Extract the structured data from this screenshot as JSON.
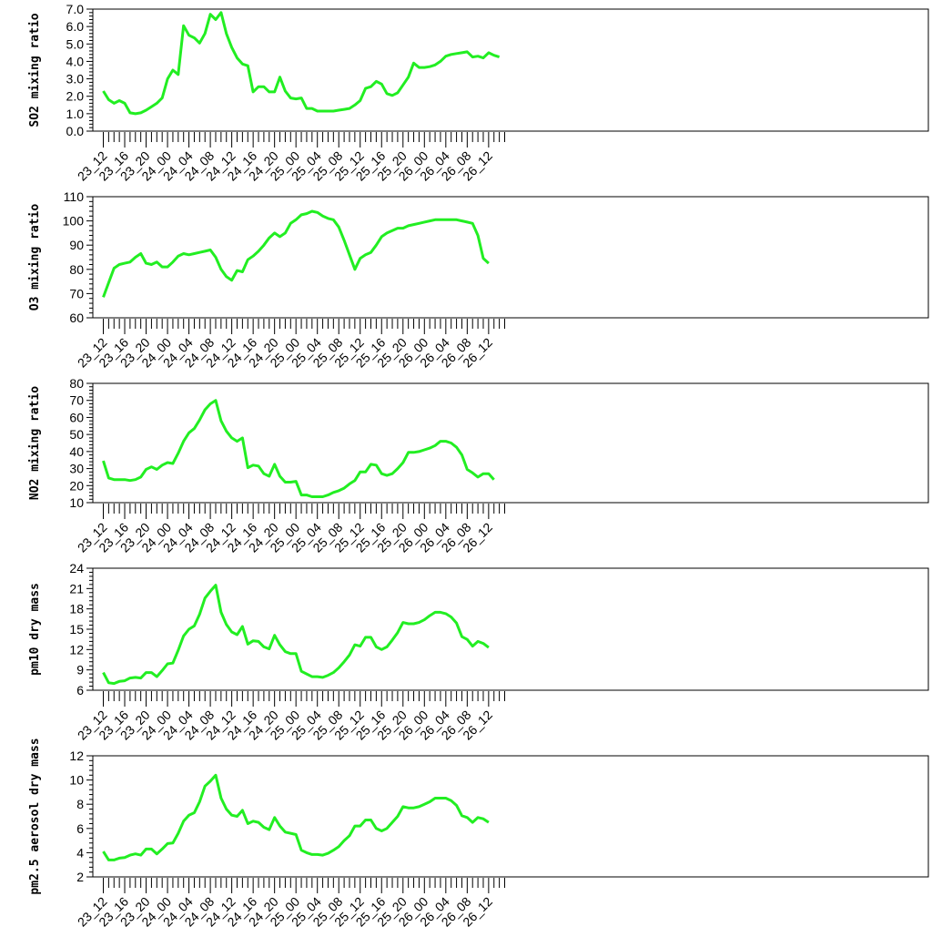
{
  "line_color": "#22ee22",
  "chart_data": [
    {
      "type": "line",
      "ylabel": "SO2 mixing ratio",
      "ylim": [
        0,
        7
      ],
      "yticks": [
        "0.0",
        "1.0",
        "2.0",
        "3.0",
        "4.0",
        "5.0",
        "6.0",
        "7.0"
      ],
      "series": [
        {
          "values": [
            2.3,
            1.8,
            1.6,
            1.75,
            1.6,
            1.05,
            1.0,
            1.05,
            1.2,
            1.4,
            1.6,
            1.9,
            3.0,
            3.5,
            3.25,
            6.05,
            5.5,
            5.35,
            5.05,
            5.6,
            6.7,
            6.4,
            6.8,
            5.6,
            4.8,
            4.2,
            3.85,
            3.75,
            2.25,
            2.55,
            2.55,
            2.25,
            2.25,
            3.1,
            2.3,
            1.9,
            1.85,
            1.9,
            1.3,
            1.3,
            1.15,
            1.15,
            1.15,
            1.15,
            1.2,
            1.25,
            1.3,
            1.5,
            1.75,
            2.45,
            2.55,
            2.85,
            2.7,
            2.15,
            2.05,
            2.2,
            2.65,
            3.1,
            3.9,
            3.65,
            3.65,
            3.7,
            3.8,
            4.0,
            4.3,
            4.4,
            4.45,
            4.5,
            4.55,
            4.25,
            4.3,
            4.2,
            4.5,
            4.35,
            4.25
          ]
        }
      ]
    },
    {
      "type": "line",
      "ylabel": "O3 mixing ratio",
      "ylim": [
        60,
        110
      ],
      "yticks": [
        "60",
        "70",
        "80",
        "90",
        "100",
        "110"
      ],
      "series": [
        {
          "values": [
            68.5,
            74.5,
            80.5,
            82,
            82.5,
            83,
            85,
            86.5,
            82.5,
            82,
            83,
            81,
            81,
            83,
            85.5,
            86.5,
            86,
            86.5,
            87,
            87.5,
            88,
            85,
            80,
            77,
            75.5,
            79.5,
            79,
            84,
            85.5,
            87.5,
            90,
            93,
            95,
            93.5,
            95,
            99,
            100.5,
            102.5,
            103,
            104,
            103.5,
            102,
            101,
            100.5,
            97.5,
            92,
            86,
            80,
            84.5,
            86,
            87,
            90,
            93.5,
            95,
            96,
            97,
            97,
            98,
            98.5,
            99,
            99.5,
            100,
            100.5,
            100.5,
            100.5,
            100.5,
            100.5,
            100,
            99.5,
            99,
            94,
            84.5,
            82.5
          ]
        }
      ]
    },
    {
      "type": "line",
      "ylabel": "NO2 mixing ratio",
      "ylim": [
        10,
        80
      ],
      "yticks": [
        "10",
        "20",
        "30",
        "40",
        "50",
        "60",
        "70",
        "80"
      ],
      "series": [
        {
          "values": [
            34.5,
            24.5,
            23.5,
            23.5,
            23.5,
            23,
            23.5,
            25,
            29.5,
            31,
            29.5,
            32,
            33.5,
            33,
            39,
            46,
            51,
            53.5,
            58.5,
            64.5,
            68,
            70,
            58,
            52,
            48,
            46,
            48,
            30.5,
            32,
            31.5,
            27,
            25.5,
            32.5,
            25.5,
            22,
            22,
            22.5,
            14.5,
            14.5,
            13.5,
            13.5,
            13.5,
            14.5,
            16,
            17,
            18.5,
            21,
            23,
            28,
            28,
            32.5,
            32,
            27,
            26,
            27,
            30,
            33.5,
            39.5,
            39.5,
            40,
            41,
            42,
            43.5,
            46,
            46,
            45,
            42.5,
            38,
            29.5,
            27.5,
            25,
            27,
            27,
            23.5
          ]
        }
      ]
    },
    {
      "type": "line",
      "ylabel": "pm10 dry mass",
      "ylim": [
        6,
        24
      ],
      "yticks": [
        "6",
        "9",
        "12",
        "15",
        "18",
        "21",
        "24"
      ],
      "series": [
        {
          "values": [
            8.6,
            7.1,
            7.0,
            7.3,
            7.4,
            7.8,
            7.9,
            7.8,
            8.6,
            8.6,
            8.0,
            8.9,
            9.9,
            10.0,
            11.9,
            14.0,
            15.0,
            15.5,
            17.2,
            19.6,
            20.6,
            21.5,
            17.5,
            15.7,
            14.6,
            14.2,
            15.4,
            12.8,
            13.3,
            13.2,
            12.4,
            12.1,
            14.1,
            12.7,
            11.7,
            11.4,
            11.4,
            8.8,
            8.4,
            8.0,
            8.0,
            7.9,
            8.2,
            8.6,
            9.3,
            10.2,
            11.2,
            12.7,
            12.5,
            13.8,
            13.8,
            12.4,
            12.0,
            12.4,
            13.4,
            14.5,
            16.0,
            15.8,
            15.8,
            16.0,
            16.4,
            17.0,
            17.5,
            17.5,
            17.3,
            16.8,
            15.9,
            13.9,
            13.5,
            12.5,
            13.2,
            12.9,
            12.3
          ]
        }
      ]
    },
    {
      "type": "line",
      "ylabel": "pm2.5 aerosol dry mass",
      "ylim": [
        2,
        12
      ],
      "yticks": [
        "2",
        "4",
        "6",
        "8",
        "10",
        "12"
      ],
      "series": [
        {
          "values": [
            4.1,
            3.4,
            3.4,
            3.55,
            3.6,
            3.8,
            3.9,
            3.8,
            4.3,
            4.3,
            3.9,
            4.3,
            4.75,
            4.8,
            5.6,
            6.6,
            7.1,
            7.3,
            8.2,
            9.5,
            9.9,
            10.4,
            8.5,
            7.6,
            7.1,
            7.0,
            7.5,
            6.4,
            6.6,
            6.5,
            6.1,
            5.9,
            6.9,
            6.2,
            5.7,
            5.6,
            5.5,
            4.2,
            4.0,
            3.85,
            3.85,
            3.8,
            3.95,
            4.2,
            4.5,
            5.0,
            5.4,
            6.2,
            6.2,
            6.7,
            6.7,
            6.0,
            5.8,
            6.0,
            6.5,
            7.0,
            7.8,
            7.7,
            7.7,
            7.8,
            8.0,
            8.2,
            8.5,
            8.5,
            8.5,
            8.3,
            7.9,
            7.05,
            6.9,
            6.5,
            6.9,
            6.8,
            6.5
          ]
        }
      ]
    }
  ],
  "x_tick_labels": [
    "23_12",
    "23_16",
    "23_20",
    "24_00",
    "24_04",
    "24_08",
    "24_12",
    "24_16",
    "24_20",
    "25_00",
    "25_04",
    "25_08",
    "25_12",
    "25_16",
    "25_20",
    "26_00",
    "26_04",
    "26_08",
    "26_12"
  ],
  "x_minor_ticks": 76
}
